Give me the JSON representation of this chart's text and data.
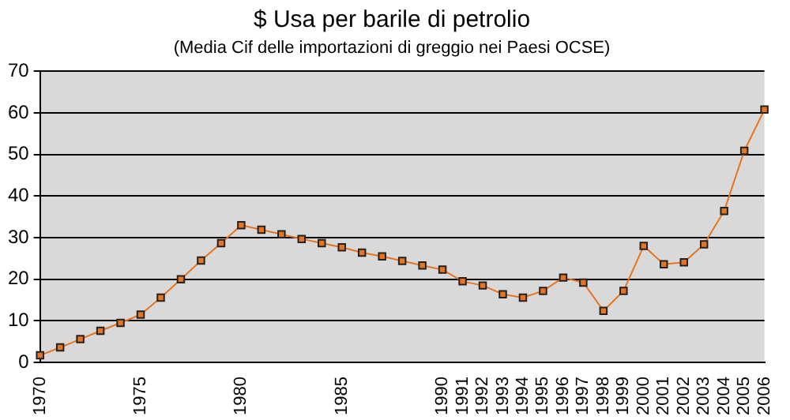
{
  "chart_data": {
    "type": "line",
    "title": "$ Usa per barile di petrolio",
    "subtitle": "(Media Cif delle importazioni di greggio nei Paesi OCSE)",
    "categories": [
      "1970",
      null,
      null,
      null,
      null,
      "1975",
      null,
      null,
      null,
      null,
      "1980",
      null,
      null,
      null,
      null,
      "1985",
      null,
      null,
      null,
      null,
      "1990",
      "1991",
      "1992",
      "1993",
      "1994",
      "1995",
      "1996",
      "1997",
      "1998",
      "1999",
      "2000",
      "2001",
      "2002",
      "2003",
      "2004",
      "2005",
      "2006"
    ],
    "series": [
      {
        "color": "#e8741f",
        "values": [
          1.7,
          3.6,
          5.6,
          7.6,
          9.5,
          11.5,
          15.6,
          20,
          24.5,
          28.7,
          33,
          31.9,
          30.8,
          29.7,
          28.7,
          27.7,
          26.4,
          25.5,
          24.4,
          23.3,
          22.3,
          19.5,
          18.5,
          16.4,
          15.6,
          17.2,
          20.4,
          19.2,
          12.4,
          17.2,
          28,
          23.6,
          24.1,
          28.4,
          36.4,
          50.9,
          60.8
        ]
      }
    ],
    "ylim": [
      0,
      70
    ],
    "yticks": [
      0,
      10,
      20,
      30,
      40,
      50,
      60,
      70
    ],
    "grid": "y",
    "legend": false,
    "marker": "square",
    "line_style": "solid"
  }
}
